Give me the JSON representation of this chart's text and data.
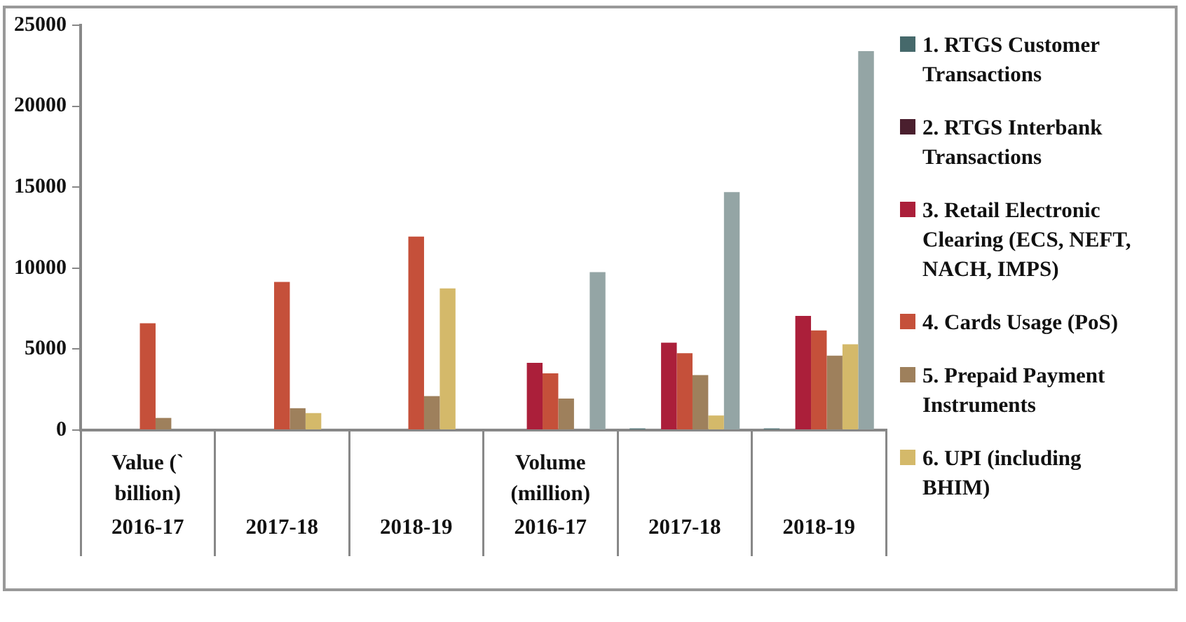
{
  "chart_data": {
    "type": "bar",
    "categories": [
      "2016-17",
      "2017-18",
      "2018-19",
      "2016-17",
      "2017-18",
      "2018-19"
    ],
    "series": [
      {
        "name": "1. RTGS Customer Transactions",
        "color": "#46696b",
        "values": [
          null,
          null,
          null,
          null,
          100,
          100
        ]
      },
      {
        "name": "2. RTGS Interbank Transactions",
        "color": "#4a1f2e",
        "values": [
          null,
          null,
          null,
          null,
          null,
          null
        ]
      },
      {
        "name": "3. Retail Electronic Clearing (ECS, NEFT, NACH, IMPS)",
        "color": "#ab1f3a",
        "values": [
          null,
          null,
          null,
          4150,
          5400,
          7050
        ]
      },
      {
        "name": "4. Cards Usage (PoS)",
        "color": "#c5503a",
        "values": [
          6600,
          9150,
          11950,
          3500,
          4750,
          6150
        ]
      },
      {
        "name": "5. Prepaid Payment Instruments",
        "color": "#9e805c",
        "values": [
          750,
          1350,
          2100,
          1950,
          3400,
          4600
        ]
      },
      {
        "name": "6. UPI (including BHIM)",
        "color": "#d4b96a",
        "values": [
          null,
          1050,
          8750,
          null,
          900,
          5300
        ]
      },
      {
        "color": "#94a5a5",
        "values": [
          null,
          null,
          null,
          9750,
          14700,
          23400
        ]
      }
    ],
    "ylim": [
      0,
      25000
    ],
    "yticks": [
      0,
      5000,
      10000,
      15000,
      20000,
      25000
    ],
    "grid": false,
    "legend": "right",
    "annotations": [
      "Value (` billion)",
      "Volume (million)"
    ]
  }
}
